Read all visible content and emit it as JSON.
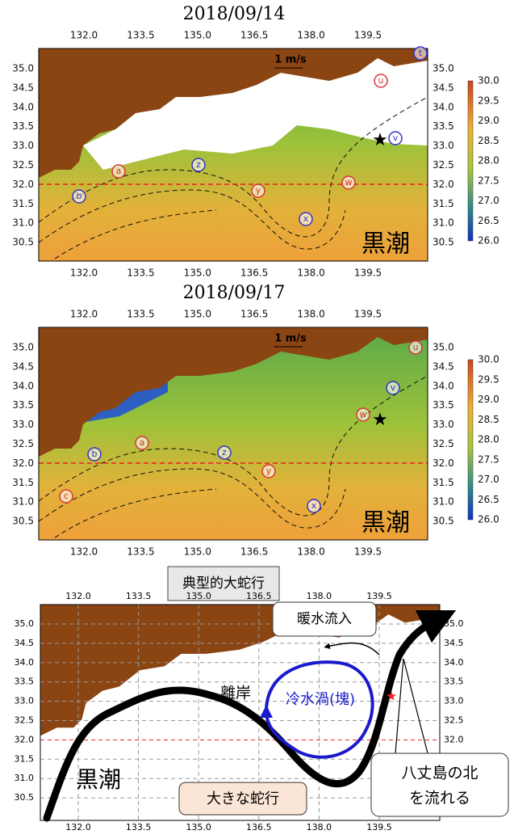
{
  "panels": [
    {
      "title": "2018/09/14",
      "x_labels": [
        "132.0",
        "133.5",
        "135.0",
        "136.5",
        "138.0",
        "139.5"
      ],
      "y_labels": [
        "35.0",
        "34.5",
        "34.0",
        "33.5",
        "33.0",
        "32.5",
        "32.0",
        "31.5",
        "31.0",
        "30.5"
      ],
      "colorbar_labels": [
        "30.0",
        "29.5",
        "29.0",
        "28.5",
        "28.0",
        "27.5",
        "27.0",
        "26.5",
        "26.0"
      ],
      "scale_label": "1 m/s",
      "region_label": "黒潮",
      "markers": [
        {
          "label": "u",
          "color": "#d33"
        },
        {
          "label": "t",
          "color": "#33c"
        },
        {
          "label": "v",
          "color": "#33c"
        },
        {
          "label": "w",
          "color": "#d33"
        },
        {
          "label": "a",
          "color": "#d33"
        },
        {
          "label": "b",
          "color": "#33c"
        },
        {
          "label": "z",
          "color": "#33c"
        },
        {
          "label": "y",
          "color": "#d33"
        },
        {
          "label": "x",
          "color": "#33c"
        }
      ]
    },
    {
      "title": "2018/09/17",
      "x_labels": [
        "132.0",
        "133.5",
        "135.0",
        "136.5",
        "138.0",
        "139.5"
      ],
      "y_labels": [
        "35.0",
        "34.5",
        "34.0",
        "33.5",
        "33.0",
        "32.5",
        "32.0",
        "31.5",
        "31.0",
        "30.5"
      ],
      "colorbar_labels": [
        "30.0",
        "29.5",
        "29.0",
        "28.5",
        "28.0",
        "27.5",
        "27.0",
        "26.5",
        "26.0"
      ],
      "scale_label": "1 m/s",
      "region_label": "黒潮",
      "markers": [
        {
          "label": "u",
          "color": "#d33"
        },
        {
          "label": "v",
          "color": "#33c"
        },
        {
          "label": "w",
          "color": "#d33"
        },
        {
          "label": "a",
          "color": "#d33"
        },
        {
          "label": "b",
          "color": "#33c"
        },
        {
          "label": "z",
          "color": "#33c"
        },
        {
          "label": "y",
          "color": "#d33"
        },
        {
          "label": "x",
          "color": "#33c"
        },
        {
          "label": "c",
          "color": "#d33"
        }
      ]
    }
  ],
  "diagram": {
    "title": "典型的大蛇行",
    "x_labels": [
      "132.0",
      "133.5",
      "135.0",
      "136.5",
      "138.0",
      "139.5"
    ],
    "y_labels": [
      "35.0",
      "34.5",
      "34.0",
      "33.5",
      "33.0",
      "32.5",
      "32.0",
      "31.5",
      "31.0",
      "30.5"
    ],
    "warm_inflow": "暖水流入",
    "offshore": "離岸",
    "cold_eddy": "冷水渦(塊)",
    "region_label": "黒潮",
    "big_meander": "大きな蛇行",
    "hachijo": [
      "八丈島の北",
      "を流れる"
    ]
  }
}
